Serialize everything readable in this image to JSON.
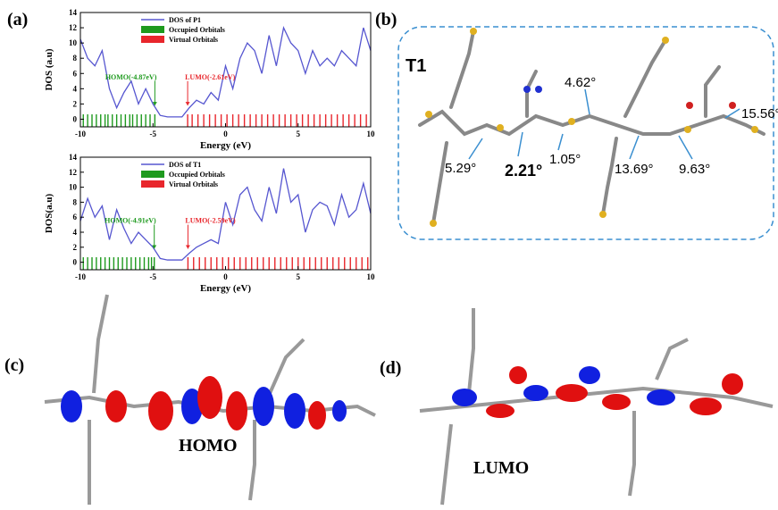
{
  "chart_data": [
    {
      "type": "dos",
      "panel": "(a)",
      "xlabel": "Energy (eV)",
      "ylabel": "DOS (a.u)",
      "x": [
        -10,
        -9.5,
        -9,
        -8.5,
        -8,
        -7.5,
        -7,
        -6.5,
        -6,
        -5.5,
        -5,
        -4.5,
        -4,
        -3.5,
        -3,
        -2.5,
        -2,
        -1.5,
        -1,
        -0.5,
        0,
        0.5,
        1,
        1.5,
        2,
        2.5,
        3,
        3.5,
        4,
        4.5,
        5,
        5.5,
        6,
        6.5,
        7,
        7.5,
        8,
        8.5,
        9,
        9.5,
        10
      ],
      "xlim": [
        -10,
        10
      ],
      "xticks": [
        -10,
        -5,
        0,
        5,
        10
      ],
      "ylim": [
        -1,
        14
      ],
      "yticks": [
        0,
        2,
        4,
        6,
        8,
        10,
        12,
        14
      ],
      "series": [
        {
          "name": "DOS of P1",
          "color": "#5656d0",
          "values": [
            10.5,
            8,
            7,
            9,
            4,
            1.5,
            3.5,
            5,
            2,
            4,
            2,
            0.5,
            0.3,
            0.3,
            0.3,
            1.5,
            2.5,
            2,
            3.5,
            2.5,
            7,
            4,
            8,
            10,
            9,
            6,
            11,
            7,
            12,
            10,
            9,
            6,
            9,
            7,
            8,
            7,
            9,
            8,
            7,
            12,
            9
          ]
        },
        {
          "name": "Occupied Orbitals",
          "color": "#1e9a1e",
          "x": [
            -9.8,
            -9.5,
            -9.2,
            -8.9,
            -8.6,
            -8.3,
            -8.1,
            -7.8,
            -7.5,
            -7.2,
            -6.9,
            -6.6,
            -6.4,
            -6.1,
            -5.8,
            -5.5,
            -5.2,
            -4.87
          ]
        },
        {
          "name": "Virtual Orbitals",
          "color": "#e8262c",
          "x": [
            -2.61,
            -2.3,
            -1.9,
            -1.5,
            -1.1,
            -0.7,
            -0.3,
            0.1,
            0.5,
            0.9,
            1.3,
            1.7,
            2.1,
            2.5,
            2.9,
            3.3,
            3.7,
            4.1,
            4.5,
            4.9,
            5.3,
            5.7,
            6.1,
            6.5,
            6.9,
            7.3,
            7.7,
            8.1,
            8.5,
            8.9,
            9.3,
            9.7
          ]
        }
      ],
      "annotations": [
        {
          "text": "HOMO(-4.87eV)",
          "x": -4.87,
          "color": "#1e9a1e"
        },
        {
          "text": "LUMO(-2.61eV)",
          "x": -2.61,
          "color": "#e8262c"
        }
      ]
    },
    {
      "type": "dos",
      "xlabel": "Energy (eV)",
      "ylabel": "DOS(a.u)",
      "x": [
        -10,
        -9.5,
        -9,
        -8.5,
        -8,
        -7.5,
        -7,
        -6.5,
        -6,
        -5.5,
        -5,
        -4.5,
        -4,
        -3.5,
        -3,
        -2.5,
        -2,
        -1.5,
        -1,
        -0.5,
        0,
        0.5,
        1,
        1.5,
        2,
        2.5,
        3,
        3.5,
        4,
        4.5,
        5,
        5.5,
        6,
        6.5,
        7,
        7.5,
        8,
        8.5,
        9,
        9.5,
        10
      ],
      "xlim": [
        -10,
        10
      ],
      "xticks": [
        -10,
        -5,
        0,
        5,
        10
      ],
      "ylim": [
        -1,
        14
      ],
      "yticks": [
        0,
        2,
        4,
        6,
        8,
        10,
        12,
        14
      ],
      "series": [
        {
          "name": "DOS of T1",
          "color": "#5656d0",
          "values": [
            5.5,
            8.5,
            6,
            7.5,
            3,
            7,
            4.5,
            2.5,
            4,
            3,
            2,
            0.5,
            0.3,
            0.3,
            0.3,
            1.2,
            2,
            2.5,
            3,
            2.5,
            8,
            5,
            9,
            10,
            7,
            5.5,
            10,
            6.5,
            12.5,
            8,
            9,
            4,
            7,
            8,
            7.5,
            5,
            9,
            6,
            7,
            10.5,
            6.5
          ]
        },
        {
          "name": "Occupied Orbitals",
          "color": "#1e9a1e",
          "x": [
            -9.8,
            -9.5,
            -9.2,
            -8.9,
            -8.6,
            -8.3,
            -8.0,
            -7.7,
            -7.4,
            -7.1,
            -6.8,
            -6.5,
            -6.2,
            -5.9,
            -5.6,
            -5.3,
            -5.1,
            -4.91
          ]
        },
        {
          "name": "Virtual Orbitals",
          "color": "#e8262c",
          "x": [
            -2.59,
            -2.2,
            -1.8,
            -1.4,
            -1.0,
            -0.6,
            -0.2,
            0.2,
            0.6,
            1.0,
            1.4,
            1.8,
            2.2,
            2.6,
            3.0,
            3.4,
            3.8,
            4.2,
            4.6,
            5.0,
            5.4,
            5.8,
            6.2,
            6.6,
            7.0,
            7.4,
            7.8,
            8.2,
            8.6,
            9.0,
            9.4,
            9.8
          ]
        }
      ],
      "annotations": [
        {
          "text": "HOMO(-4.91eV)",
          "x": -4.91,
          "color": "#1e9a1e"
        },
        {
          "text": "LUMO(-2.59eV)",
          "x": -2.59,
          "color": "#e8262c"
        }
      ]
    }
  ],
  "panel_b": {
    "label": "(b)",
    "name": "T1",
    "angles": [
      "4.62°",
      "15.56°",
      "5.29°",
      "2.21°",
      "1.05°",
      "13.69°",
      "9.63°"
    ]
  },
  "panel_c": {
    "label": "(c)",
    "orbital": "HOMO"
  },
  "panel_d": {
    "label": "(d)",
    "orbital": "LUMO"
  }
}
